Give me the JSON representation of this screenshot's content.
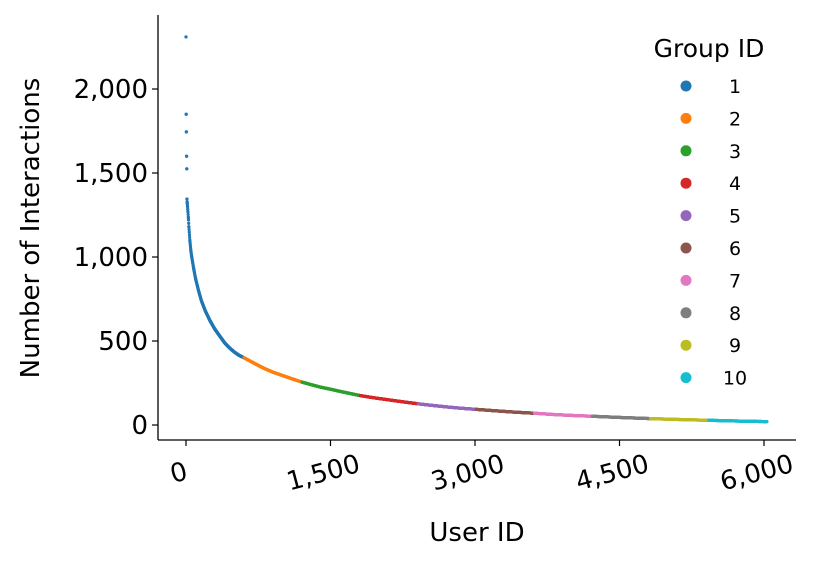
{
  "chart_data": {
    "type": "scatter",
    "title": "",
    "xlabel": "User ID",
    "ylabel": "Number of Interactions",
    "xlim": [
      -300,
      6300
    ],
    "ylim": [
      -90,
      2430
    ],
    "x_ticks": [
      0,
      1500,
      3000,
      4500,
      6000
    ],
    "x_tick_labels": [
      "0",
      "1,500",
      "3,000",
      "4,500",
      "6,000"
    ],
    "y_ticks": [
      0,
      500,
      1000,
      1500,
      2000
    ],
    "y_tick_labels": [
      "0",
      "500",
      "1,000",
      "1,500",
      "2,000"
    ],
    "grid": false,
    "legend": {
      "title": "Group ID",
      "placement": "top-right"
    },
    "series": [
      {
        "name": "1",
        "color": "#1f77b4",
        "x_range": [
          0,
          603
        ],
        "points": [
          [
            0,
            2310
          ],
          [
            2,
            1850
          ],
          [
            4,
            1745
          ],
          [
            6,
            1600
          ],
          [
            8,
            1525
          ],
          [
            10,
            1345
          ],
          [
            13,
            1320
          ],
          [
            16,
            1300
          ],
          [
            20,
            1270
          ],
          [
            25,
            1230
          ],
          [
            30,
            1180
          ],
          [
            40,
            1100
          ],
          [
            50,
            1040
          ],
          [
            60,
            1000
          ],
          [
            80,
            930
          ],
          [
            100,
            870
          ],
          [
            130,
            800
          ],
          [
            160,
            740
          ],
          [
            200,
            680
          ],
          [
            250,
            620
          ],
          [
            300,
            570
          ],
          [
            350,
            530
          ],
          [
            400,
            490
          ],
          [
            450,
            460
          ],
          [
            500,
            435
          ],
          [
            550,
            415
          ],
          [
            603,
            400
          ]
        ]
      },
      {
        "name": "2",
        "color": "#ff7f0e",
        "x_range": [
          603,
          1206
        ],
        "points": [
          [
            603,
            400
          ],
          [
            700,
            370
          ],
          [
            800,
            340
          ],
          [
            900,
            315
          ],
          [
            1000,
            295
          ],
          [
            1100,
            275
          ],
          [
            1206,
            255
          ]
        ]
      },
      {
        "name": "3",
        "color": "#2ca02c",
        "x_range": [
          1206,
          1809
        ],
        "points": [
          [
            1206,
            255
          ],
          [
            1300,
            240
          ],
          [
            1400,
            225
          ],
          [
            1500,
            213
          ],
          [
            1600,
            200
          ],
          [
            1700,
            188
          ],
          [
            1809,
            175
          ]
        ]
      },
      {
        "name": "4",
        "color": "#d62728",
        "x_range": [
          1809,
          2412
        ],
        "points": [
          [
            1809,
            175
          ],
          [
            1950,
            162
          ],
          [
            2100,
            150
          ],
          [
            2250,
            138
          ],
          [
            2412,
            126
          ]
        ]
      },
      {
        "name": "5",
        "color": "#9467bd",
        "x_range": [
          2412,
          3015
        ],
        "points": [
          [
            2412,
            126
          ],
          [
            2550,
            117
          ],
          [
            2700,
            108
          ],
          [
            2850,
            100
          ],
          [
            3015,
            93
          ]
        ]
      },
      {
        "name": "6",
        "color": "#8c564b",
        "x_range": [
          3015,
          3618
        ],
        "points": [
          [
            3015,
            93
          ],
          [
            3200,
            85
          ],
          [
            3400,
            77
          ],
          [
            3618,
            70
          ]
        ]
      },
      {
        "name": "7",
        "color": "#e377c2",
        "x_range": [
          3618,
          4221
        ],
        "points": [
          [
            3618,
            70
          ],
          [
            3800,
            63
          ],
          [
            4000,
            57
          ],
          [
            4221,
            52
          ]
        ]
      },
      {
        "name": "8",
        "color": "#7f7f7f",
        "x_range": [
          4221,
          4824
        ],
        "points": [
          [
            4221,
            52
          ],
          [
            4500,
            45
          ],
          [
            4824,
            38
          ]
        ]
      },
      {
        "name": "9",
        "color": "#bcbd22",
        "x_range": [
          4824,
          5427
        ],
        "points": [
          [
            4824,
            38
          ],
          [
            5100,
            33
          ],
          [
            5427,
            28
          ]
        ]
      },
      {
        "name": "10",
        "color": "#17becf",
        "x_range": [
          5427,
          6030
        ],
        "points": [
          [
            5427,
            28
          ],
          [
            5700,
            24
          ],
          [
            6030,
            20
          ]
        ]
      }
    ]
  }
}
